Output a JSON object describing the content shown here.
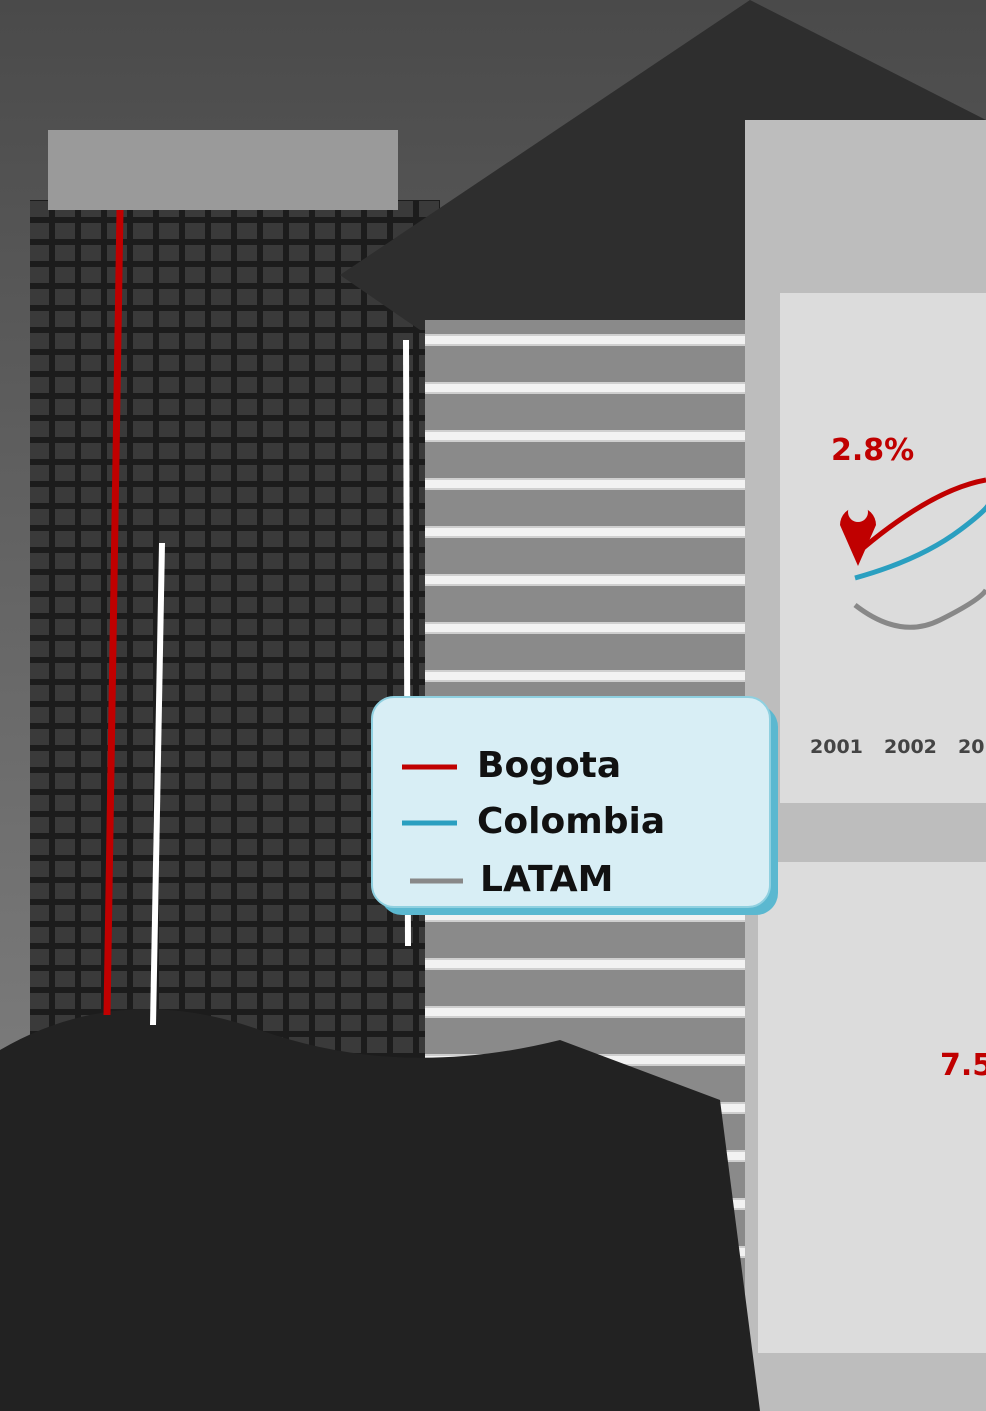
{
  "legend": {
    "items": [
      "Bogota",
      "Colombia",
      "LATAM"
    ]
  },
  "panel_top": {
    "label": "2.8%",
    "years": [
      "2001",
      "2002",
      "20"
    ]
  },
  "panel_bottom": {
    "label": "7.5"
  }
}
